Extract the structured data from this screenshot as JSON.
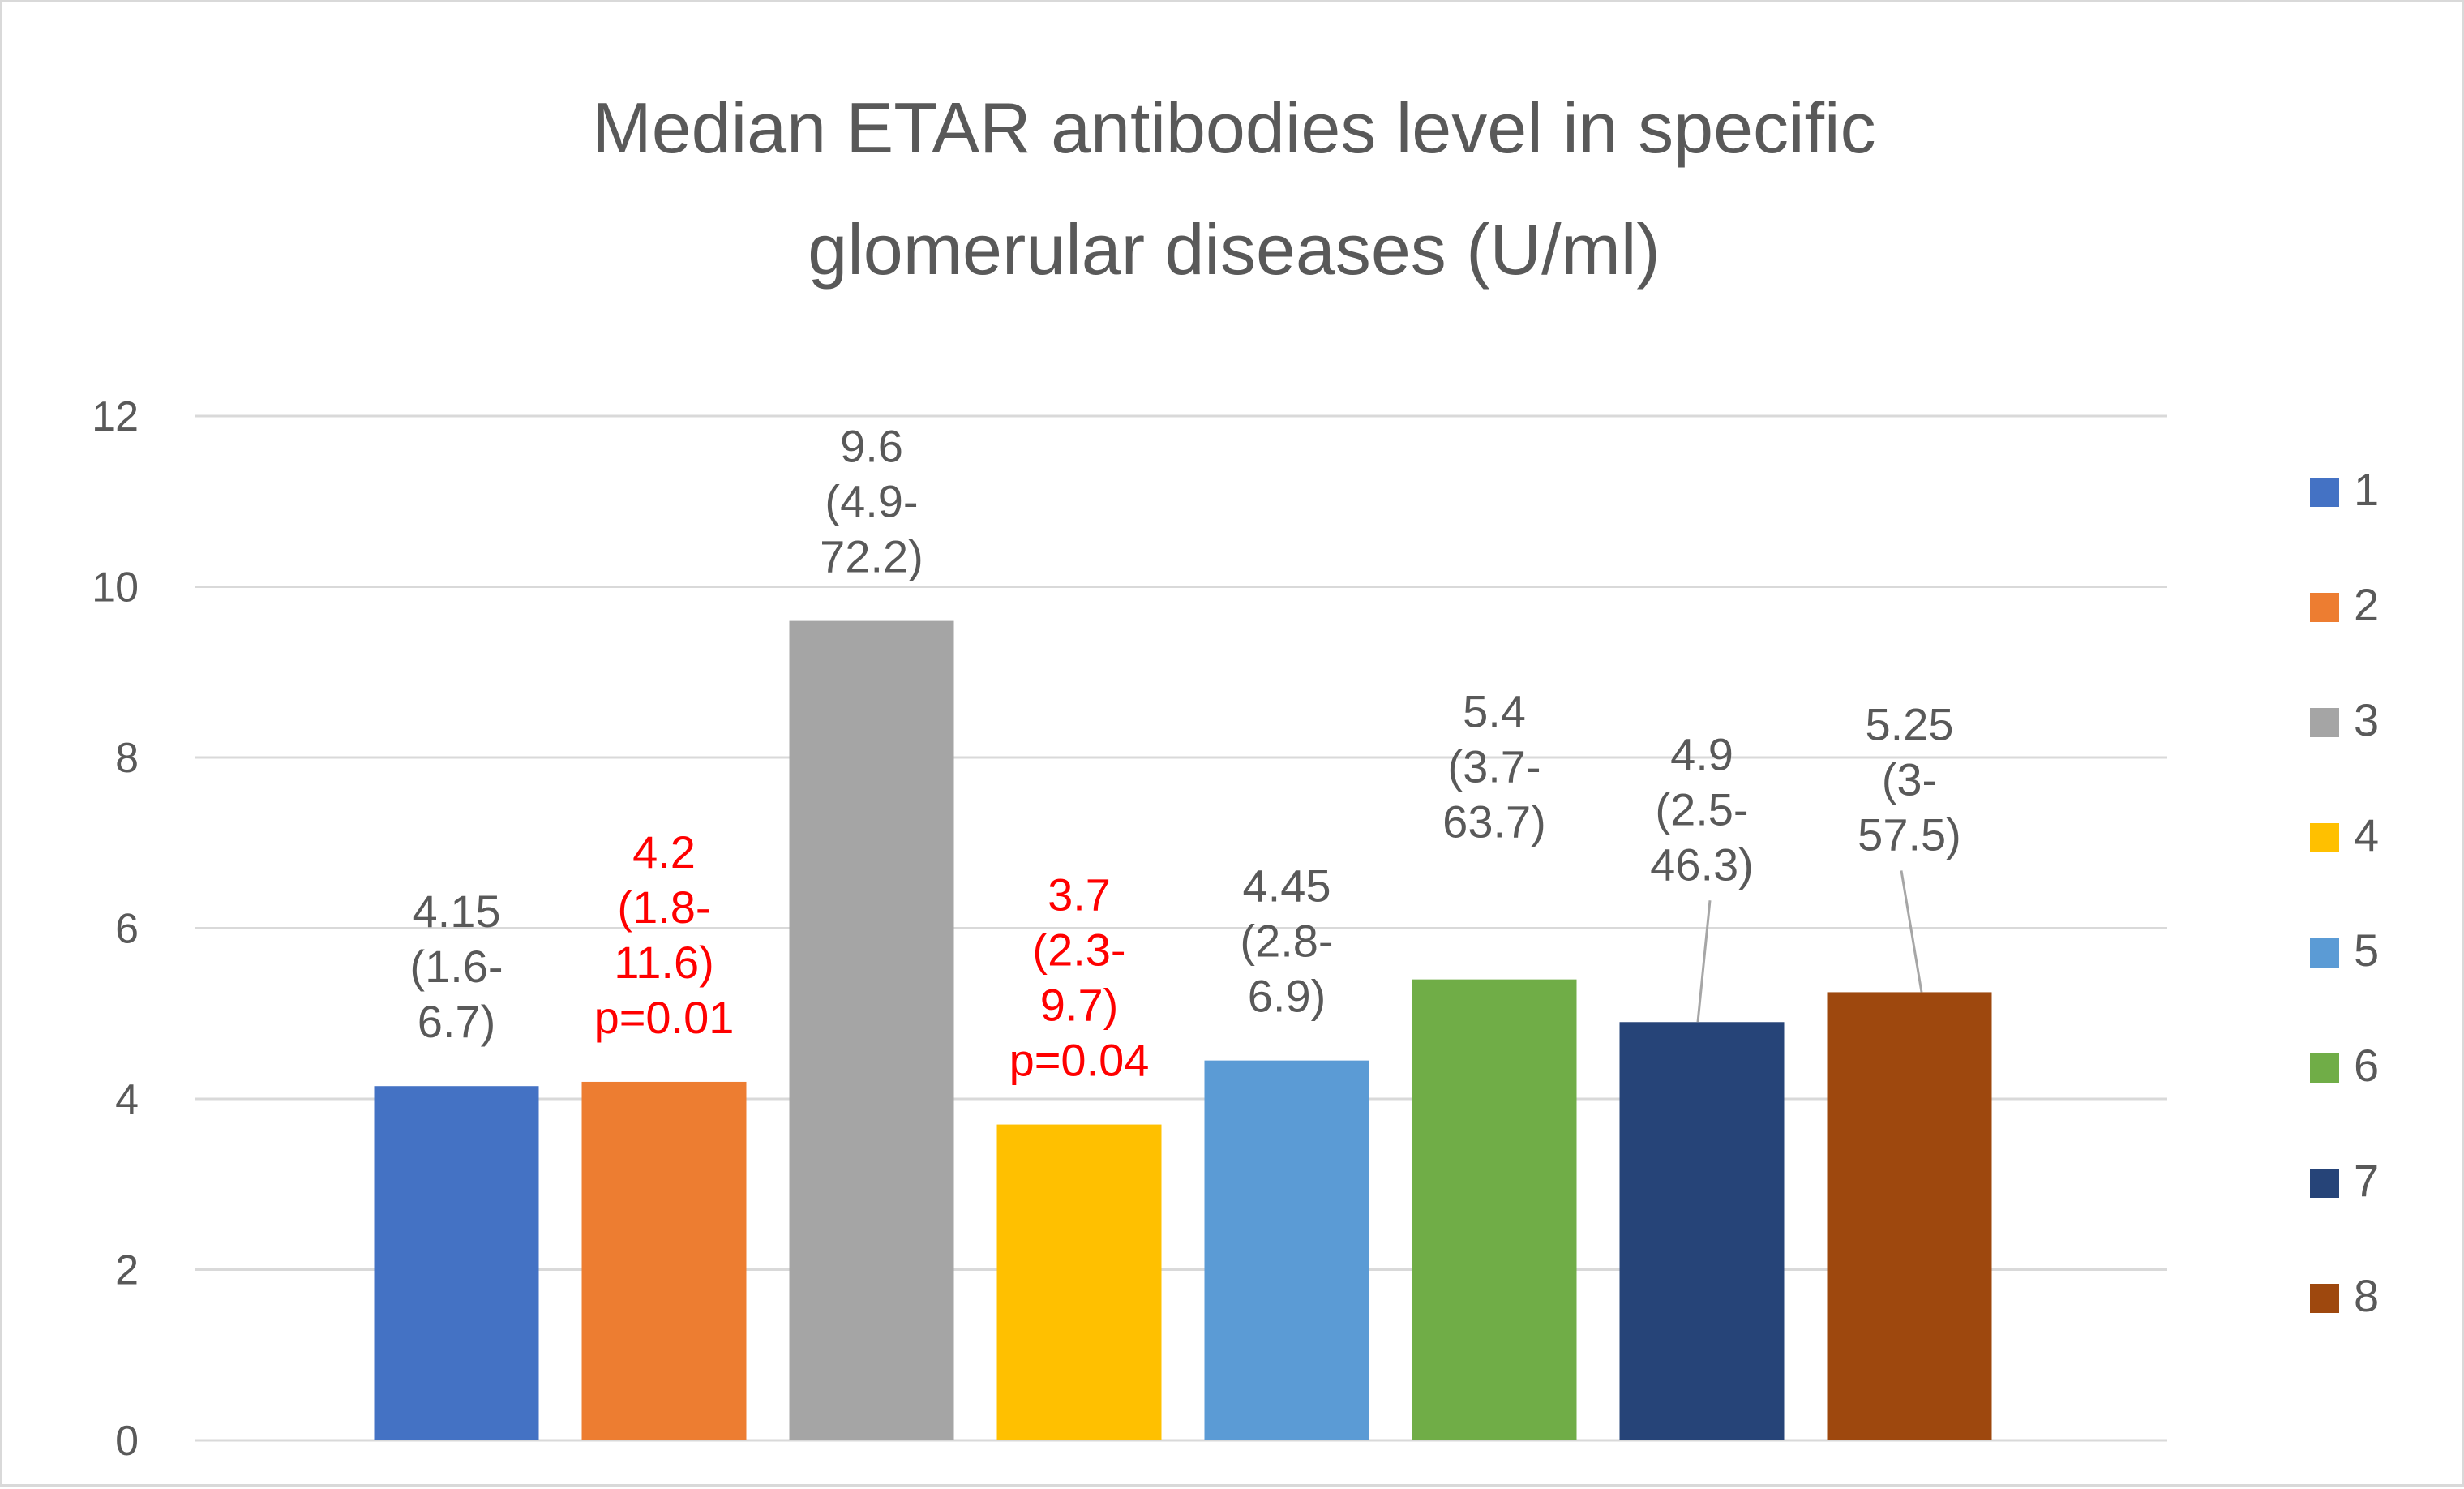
{
  "chart_data": {
    "type": "bar",
    "title_lines": [
      "Median ETAR antibodies level in specific",
      "glomerular diseases (U/ml)"
    ],
    "xlabel": "",
    "ylabel": "",
    "ylim": [
      0,
      12
    ],
    "yticks": [
      0,
      2,
      4,
      6,
      8,
      10,
      12
    ],
    "grid": true,
    "legend_position": "right",
    "categories": [
      "1",
      "2",
      "3",
      "4",
      "5",
      "6",
      "7",
      "8"
    ],
    "values": [
      4.15,
      4.2,
      9.6,
      3.7,
      4.45,
      5.4,
      4.9,
      5.25
    ],
    "colors": [
      "#4472c4",
      "#ed7d31",
      "#a5a5a5",
      "#ffc000",
      "#5b9bd5",
      "#70ad47",
      "#264478",
      "#9e480e"
    ],
    "data_labels": [
      {
        "lines": [
          "4.15",
          "(1.6-",
          "6.7)"
        ],
        "color": "#595959"
      },
      {
        "lines": [
          "4.2",
          "(1.8-",
          "11.6)",
          "p=0.01"
        ],
        "color": "#ff0000"
      },
      {
        "lines": [
          "9.6",
          "(4.9-",
          "72.2)"
        ],
        "color": "#595959"
      },
      {
        "lines": [
          "3.7",
          "(2.3-",
          "9.7)",
          "p=0.04"
        ],
        "color": "#ff0000"
      },
      {
        "lines": [
          "4.45",
          "(2.8-",
          "6.9)"
        ],
        "color": "#595959"
      },
      {
        "lines": [
          "5.4",
          "(3.7-",
          "63.7)"
        ],
        "color": "#595959"
      },
      {
        "lines": [
          "4.9",
          "(2.5-",
          "46.3)"
        ],
        "color": "#595959"
      },
      {
        "lines": [
          "5.25",
          "(3-",
          "57.5)"
        ],
        "color": "#595959"
      }
    ],
    "legend": [
      "1",
      "2",
      "3",
      "4",
      "5",
      "6",
      "7",
      "8"
    ],
    "gridline_color": "#d9d9d9",
    "text_color": "#595959"
  }
}
